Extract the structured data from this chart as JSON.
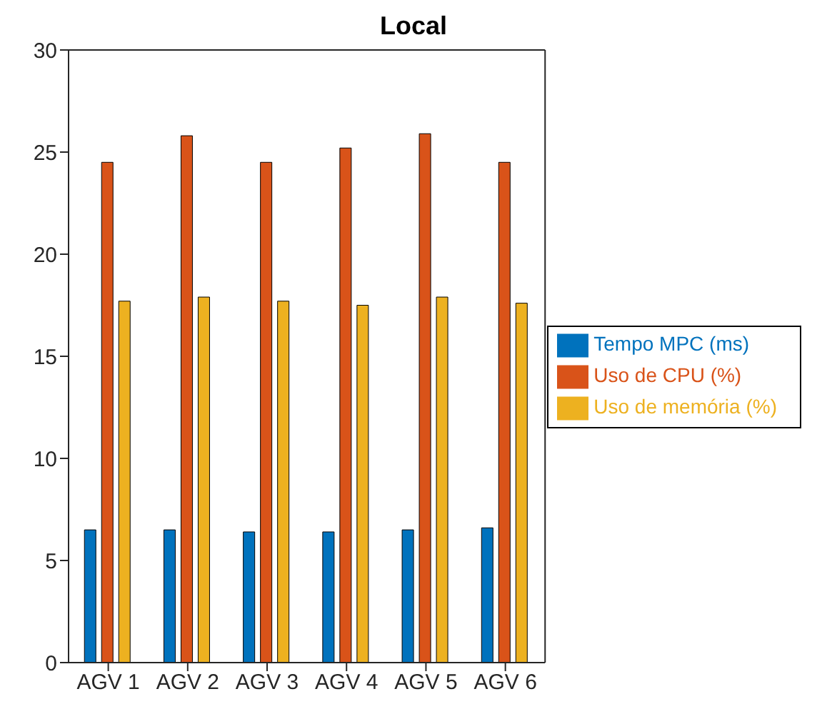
{
  "chart_data": {
    "type": "bar",
    "title": "Local",
    "categories": [
      "AGV 1",
      "AGV 2",
      "AGV 3",
      "AGV 4",
      "AGV 5",
      "AGV 6"
    ],
    "series": [
      {
        "name": "Tempo MPC (ms)",
        "color": "#0072bd",
        "values": [
          6.5,
          6.5,
          6.4,
          6.4,
          6.5,
          6.6
        ]
      },
      {
        "name": "Uso de CPU (%)",
        "color": "#d95319",
        "values": [
          24.5,
          25.8,
          24.5,
          25.2,
          25.9,
          24.5
        ]
      },
      {
        "name": "Uso de memória (%)",
        "color": "#edb120",
        "values": [
          17.7,
          17.9,
          17.7,
          17.5,
          17.9,
          17.6
        ]
      }
    ],
    "ylim": [
      0,
      30
    ],
    "yticks": [
      0,
      5,
      10,
      15,
      20,
      25,
      30
    ],
    "grid": false,
    "legend": "right"
  }
}
